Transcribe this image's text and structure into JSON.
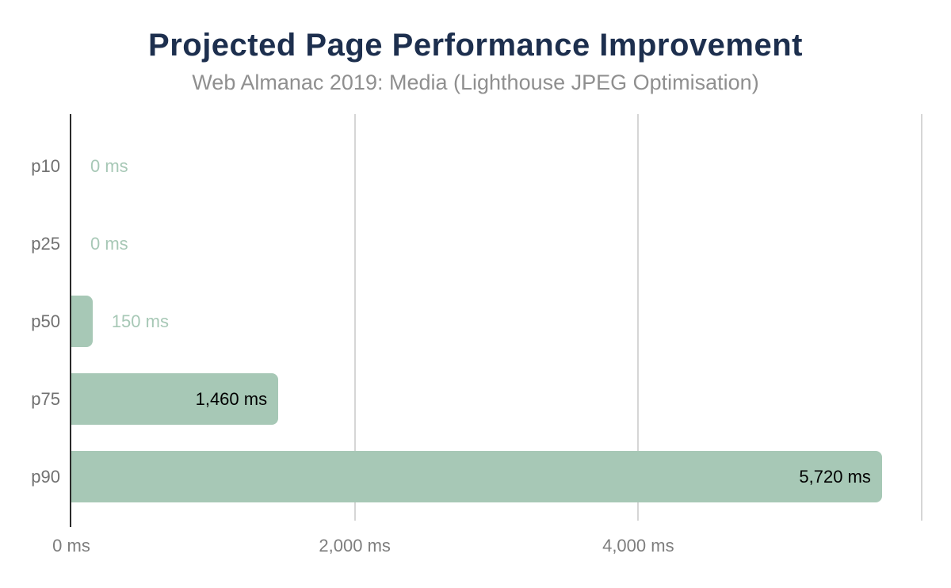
{
  "chart_data": {
    "type": "bar",
    "orientation": "horizontal",
    "title": "Projected Page Performance Improvement",
    "subtitle": "Web Almanac 2019: Media (Lighthouse JPEG Optimisation)",
    "categories": [
      "p10",
      "p25",
      "p50",
      "p75",
      "p90"
    ],
    "values": [
      0,
      0,
      150,
      1460,
      5720
    ],
    "value_labels": [
      "0 ms",
      "0 ms",
      "150 ms",
      "1,460 ms",
      "5,720 ms"
    ],
    "value_label_inside": [
      false,
      false,
      false,
      true,
      true
    ],
    "xlabel": "",
    "ylabel": "",
    "xlim": [
      0,
      6000
    ],
    "x_ticks": [
      {
        "value": 0,
        "label": "0 ms"
      },
      {
        "value": 2000,
        "label": "2,000 ms"
      },
      {
        "value": 4000,
        "label": "4,000 ms"
      },
      {
        "value": 6000,
        "label": ""
      }
    ],
    "grid": "vertical-lines-on",
    "legend": "none",
    "colors": {
      "bar": "#a7c8b6",
      "value_label_outside": "#a7c8b6",
      "value_label_inside": "#000000",
      "title": "#1d2f4e",
      "subtitle": "#8f8f8f",
      "category_label": "#717171",
      "tick_label": "#7e7e7e",
      "gridline": "#d6d6d6",
      "axis_line": "#2b2b2b",
      "background": "#ffffff"
    }
  }
}
